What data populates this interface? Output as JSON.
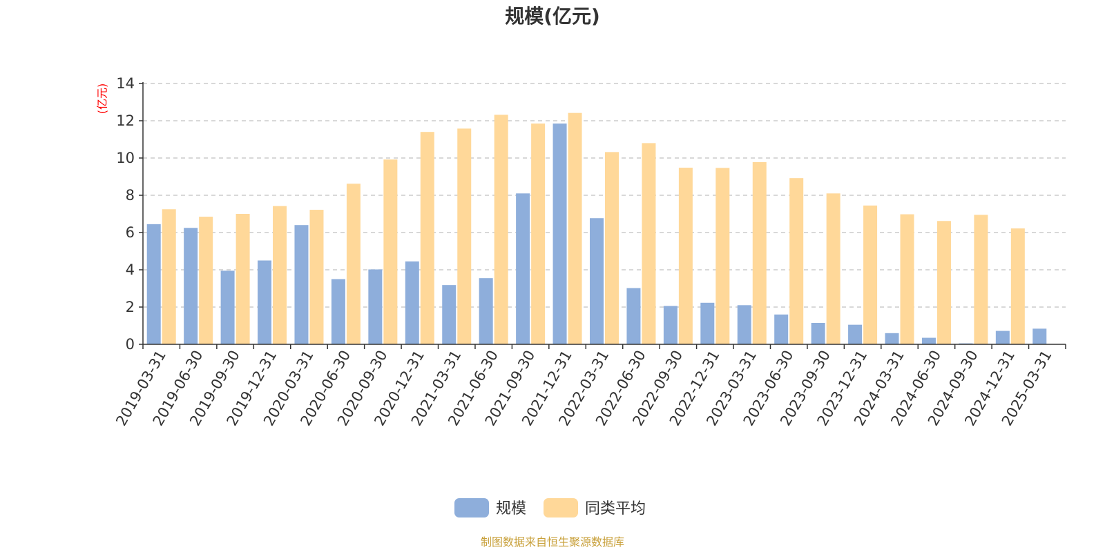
{
  "colors": {
    "series_primary": "#8eaedb",
    "series_secondary": "#ffd899",
    "source_text": "#c8a03a",
    "unit_label": "#ff0000",
    "grid": "#cccccc",
    "axis": "#333333"
  },
  "footer": {
    "source": "制图数据来自恒生聚源数据库"
  },
  "chart_data": {
    "type": "bar",
    "title": "规模(亿元)",
    "ylabel": "(亿元)",
    "xlabel": "",
    "ylim": [
      0,
      14
    ],
    "yticks": [
      0,
      2,
      4,
      6,
      8,
      10,
      12,
      14
    ],
    "grid": true,
    "legend_position": "bottom-center",
    "categories": [
      "2019-03-31",
      "2019-06-30",
      "2019-09-30",
      "2019-12-31",
      "2020-03-31",
      "2020-06-30",
      "2020-09-30",
      "2020-12-31",
      "2021-03-31",
      "2021-06-30",
      "2021-09-30",
      "2021-12-31",
      "2022-03-31",
      "2022-06-30",
      "2022-09-30",
      "2022-12-31",
      "2023-03-31",
      "2023-06-30",
      "2023-09-30",
      "2023-12-31",
      "2024-03-31",
      "2024-06-30",
      "2024-09-30",
      "2024-12-31",
      "2025-03-31"
    ],
    "series": [
      {
        "name": "规模",
        "values": [
          6.45,
          6.25,
          3.95,
          4.5,
          6.4,
          3.5,
          4.02,
          4.45,
          3.18,
          3.55,
          8.1,
          11.85,
          6.77,
          3.02,
          2.06,
          2.23,
          2.1,
          1.6,
          1.15,
          1.05,
          0.6,
          0.35,
          0.05,
          0.72,
          0.84
        ]
      },
      {
        "name": "同类平均",
        "values": [
          7.25,
          6.85,
          7.0,
          7.42,
          7.22,
          8.62,
          9.92,
          11.4,
          11.58,
          12.32,
          11.85,
          12.42,
          10.32,
          10.8,
          9.48,
          9.47,
          9.78,
          8.92,
          8.1,
          7.45,
          6.98,
          6.62,
          6.95,
          6.22,
          null
        ]
      }
    ]
  }
}
